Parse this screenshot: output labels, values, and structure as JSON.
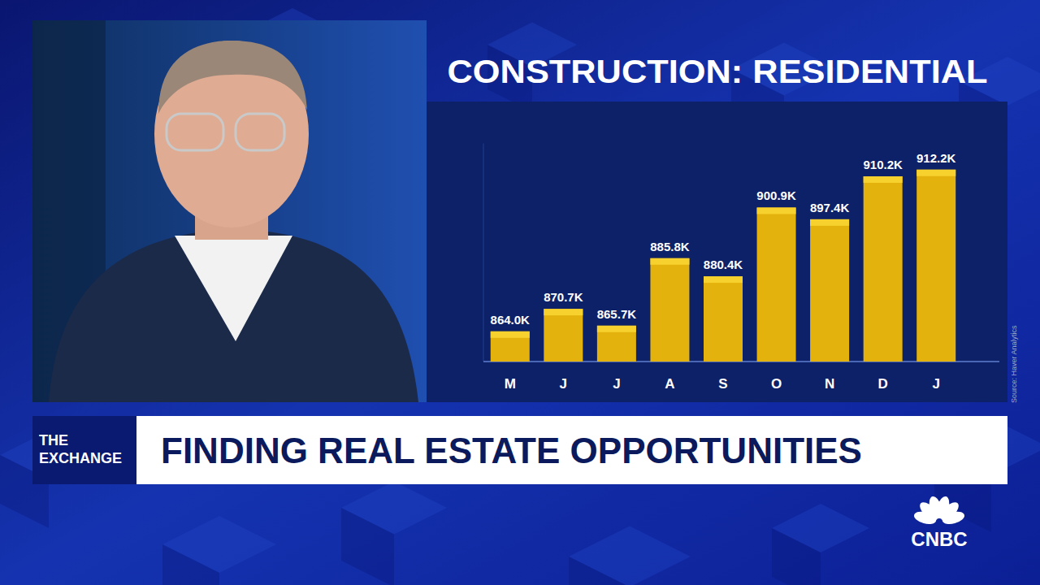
{
  "chart_data": {
    "type": "bar",
    "title": "CONSTRUCTION: RESIDENTIAL",
    "categories": [
      "M",
      "J",
      "J",
      "A",
      "S",
      "O",
      "N",
      "D",
      "J"
    ],
    "values": [
      864.0,
      870.7,
      865.7,
      885.8,
      880.4,
      900.9,
      897.4,
      910.2,
      912.2
    ],
    "value_labels": [
      "864.0K",
      "870.7K",
      "865.7K",
      "885.8K",
      "880.4K",
      "900.9K",
      "897.4K",
      "910.2K",
      "912.2K"
    ],
    "data_labels": true,
    "color": "#e3b20c",
    "ylim": [
      855,
      920
    ],
    "grid": false,
    "tick_labels": "x",
    "source": "Source: Haver Analytics"
  },
  "banner": {
    "show": "THE EXCHANGE",
    "headline": "FINDING REAL ESTATE OPPORTUNITIES"
  },
  "logo": "CNBC"
}
